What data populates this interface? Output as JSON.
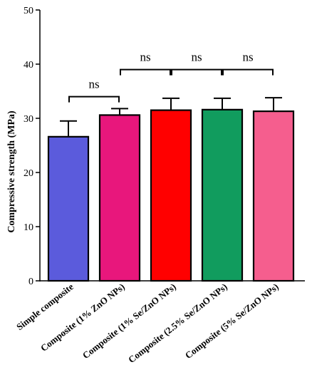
{
  "chart_data": {
    "type": "bar",
    "title": "",
    "xlabel": "",
    "ylabel": "Compressive strength (MPa)",
    "ylim": [
      0,
      50
    ],
    "yticks": [
      0,
      10,
      20,
      30,
      40,
      50
    ],
    "grid": false,
    "categories": [
      "Simple composite",
      "Composite (1% ZnO NPs)",
      "Composite (1% Se/ZnO NPs)",
      "Composite (2.5% Se/ZnO NPs)",
      "Composite (5% Se/ZnO NPs)"
    ],
    "values": [
      26.6,
      30.6,
      31.5,
      31.6,
      31.3
    ],
    "error": [
      2.9,
      1.2,
      2.2,
      2.1,
      2.5
    ],
    "colors": [
      "#5b5bdc",
      "#e8177c",
      "#ff0000",
      "#119c5e",
      "#f55e8e"
    ],
    "significance": [
      {
        "from": 0,
        "to": 1,
        "y": 34,
        "label": "ns"
      },
      {
        "from": 1,
        "to": 2,
        "y": 39,
        "label": "ns"
      },
      {
        "from": 2,
        "to": 3,
        "y": 39,
        "label": "ns"
      },
      {
        "from": 3,
        "to": 4,
        "y": 39,
        "label": "ns"
      }
    ]
  }
}
